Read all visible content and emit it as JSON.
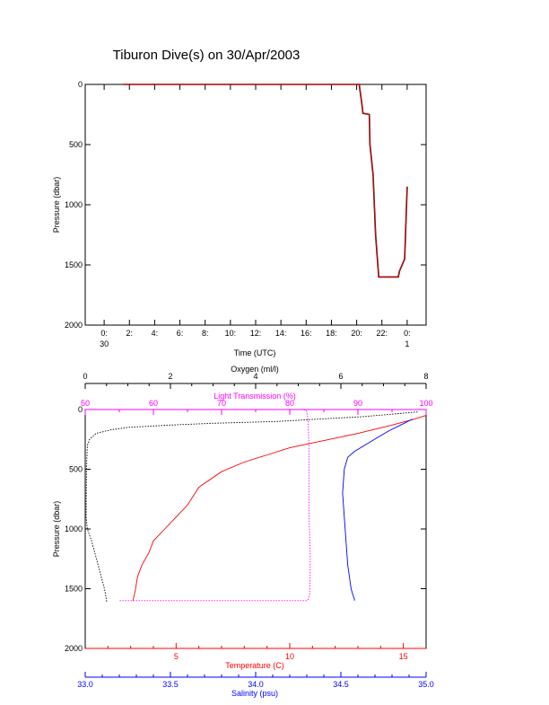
{
  "chart_data": [
    {
      "type": "line",
      "title": "Tiburon Dive(s) on 30/Apr/2003",
      "xlabel": "Time (UTC)",
      "ylabel": "Pressure (dbar)",
      "x_unit": "hours from 00:00 30 Apr 2003 (UTC)",
      "xlim": [
        -1.5,
        25.5
      ],
      "ylim": [
        2000,
        0
      ],
      "y_reversed": true,
      "x_ticks": [
        {
          "x": 0,
          "label": "0:",
          "sublabel": "30"
        },
        {
          "x": 2,
          "label": "2:"
        },
        {
          "x": 4,
          "label": "4:"
        },
        {
          "x": 6,
          "label": "6:"
        },
        {
          "x": 8,
          "label": "8:"
        },
        {
          "x": 10,
          "label": "10:"
        },
        {
          "x": 12,
          "label": "12:"
        },
        {
          "x": 14,
          "label": "14:"
        },
        {
          "x": 16,
          "label": "16:"
        },
        {
          "x": 18,
          "label": "18:"
        },
        {
          "x": 20,
          "label": "20:"
        },
        {
          "x": 22,
          "label": "22:"
        },
        {
          "x": 24,
          "label": "0:",
          "sublabel": "1"
        }
      ],
      "y_ticks": [
        0,
        500,
        1000,
        1500,
        2000
      ],
      "series": [
        {
          "color": "#000000",
          "x": [
            1.5,
            20.2,
            20.4,
            20.5,
            21.0,
            21.05,
            21.3,
            21.4,
            21.5,
            21.75,
            22.0,
            22.5,
            23.0,
            23.3,
            23.4,
            23.8,
            24.0
          ],
          "y": [
            0,
            0,
            150,
            240,
            250,
            500,
            750,
            1000,
            1250,
            1600,
            1600,
            1600,
            1600,
            1600,
            1550,
            1450,
            850
          ]
        },
        {
          "color": "#ff0000",
          "x": [
            1.5,
            20.2,
            20.4,
            20.5,
            21.0,
            21.05,
            21.3,
            21.4,
            21.5,
            21.75,
            22.0,
            22.5,
            23.0,
            23.3,
            23.4,
            23.8,
            24.0
          ],
          "y": [
            0,
            0,
            150,
            240,
            250,
            500,
            750,
            1000,
            1250,
            1600,
            1600,
            1600,
            1600,
            1600,
            1550,
            1450,
            850
          ]
        }
      ]
    },
    {
      "type": "line",
      "ylabel": "Pressure (dbar)",
      "ylim": [
        2000,
        0
      ],
      "y_reversed": true,
      "y_ticks": [
        0,
        500,
        1000,
        1500,
        2000
      ],
      "axes": [
        {
          "label": "Oxygen (ml/l)",
          "color": "#000000",
          "range": [
            0,
            8
          ],
          "ticks": [
            0,
            2,
            4,
            6,
            8
          ],
          "tick_labels": [
            "0",
            "2",
            "4",
            "6",
            "8"
          ]
        },
        {
          "label": "Light Transmission (%)",
          "color": "#ff00ff",
          "range": [
            50,
            100
          ],
          "ticks": [
            50,
            60,
            70,
            80,
            90,
            100
          ],
          "tick_labels": [
            "50",
            "60",
            "70",
            "80",
            "90",
            "100"
          ]
        },
        {
          "label": "Temperature (C)",
          "color": "#ff0000",
          "range": [
            1,
            16
          ],
          "ticks": [
            5,
            10,
            15
          ],
          "tick_labels": [
            "5",
            "10",
            "15"
          ]
        },
        {
          "label": "Salinity (psu)",
          "color": "#0000ff",
          "range": [
            33.0,
            35.0
          ],
          "ticks": [
            33.0,
            33.5,
            34.0,
            34.5,
            35.0
          ],
          "tick_labels": [
            "33.0",
            "33.5",
            "34.0",
            "34.5",
            "35.0"
          ]
        }
      ],
      "series": [
        {
          "color": "#000000",
          "axis": 0,
          "values": [
            7.8,
            6.5,
            5.5,
            4.5,
            3.0,
            2.0,
            1.5,
            1.0,
            0.6,
            0.25,
            0.1,
            0.05,
            0.03,
            0.02,
            0.05,
            0.15,
            0.3,
            0.45,
            0.5,
            0.5
          ],
          "pressure": [
            20,
            60,
            80,
            100,
            115,
            130,
            140,
            150,
            170,
            200,
            250,
            300,
            500,
            900,
            1000,
            1100,
            1300,
            1500,
            1600,
            1610
          ]
        },
        {
          "color": "#ff00ff",
          "axis": 1,
          "values": [
            69,
            75,
            80,
            82,
            82.5,
            82.7,
            82.8,
            82.8,
            82.8,
            82.9,
            83.0,
            83.0,
            82.9,
            82.7,
            82.5,
            80,
            72,
            65,
            58,
            55
          ],
          "pressure": [
            0,
            0,
            0,
            0,
            15,
            100,
            300,
            500,
            800,
            1000,
            1200,
            1400,
            1550,
            1590,
            1600,
            1600,
            1600,
            1600,
            1600,
            1600
          ]
        },
        {
          "color": "#ff0000",
          "axis": 2,
          "values": [
            16.0,
            15.5,
            14.5,
            13.0,
            12.0,
            11.0,
            10.0,
            9.0,
            8.0,
            7.0,
            6.0,
            5.5,
            5.0,
            4.5,
            4.0,
            3.8,
            3.5,
            3.3,
            3.2,
            3.1
          ],
          "pressure": [
            50,
            80,
            130,
            200,
            240,
            280,
            320,
            380,
            440,
            520,
            650,
            800,
            900,
            1000,
            1100,
            1200,
            1300,
            1400,
            1520,
            1600
          ]
        },
        {
          "color": "#0000ff",
          "axis": 3,
          "values": [
            34.92,
            34.85,
            34.78,
            34.72,
            34.65,
            34.58,
            34.54,
            34.52,
            34.51,
            34.52,
            34.53,
            34.54,
            34.55,
            34.56,
            34.57,
            34.58,
            34.58
          ],
          "pressure": [
            80,
            130,
            180,
            230,
            290,
            350,
            400,
            500,
            700,
            900,
            1100,
            1300,
            1400,
            1500,
            1550,
            1590,
            1600
          ]
        }
      ]
    }
  ]
}
